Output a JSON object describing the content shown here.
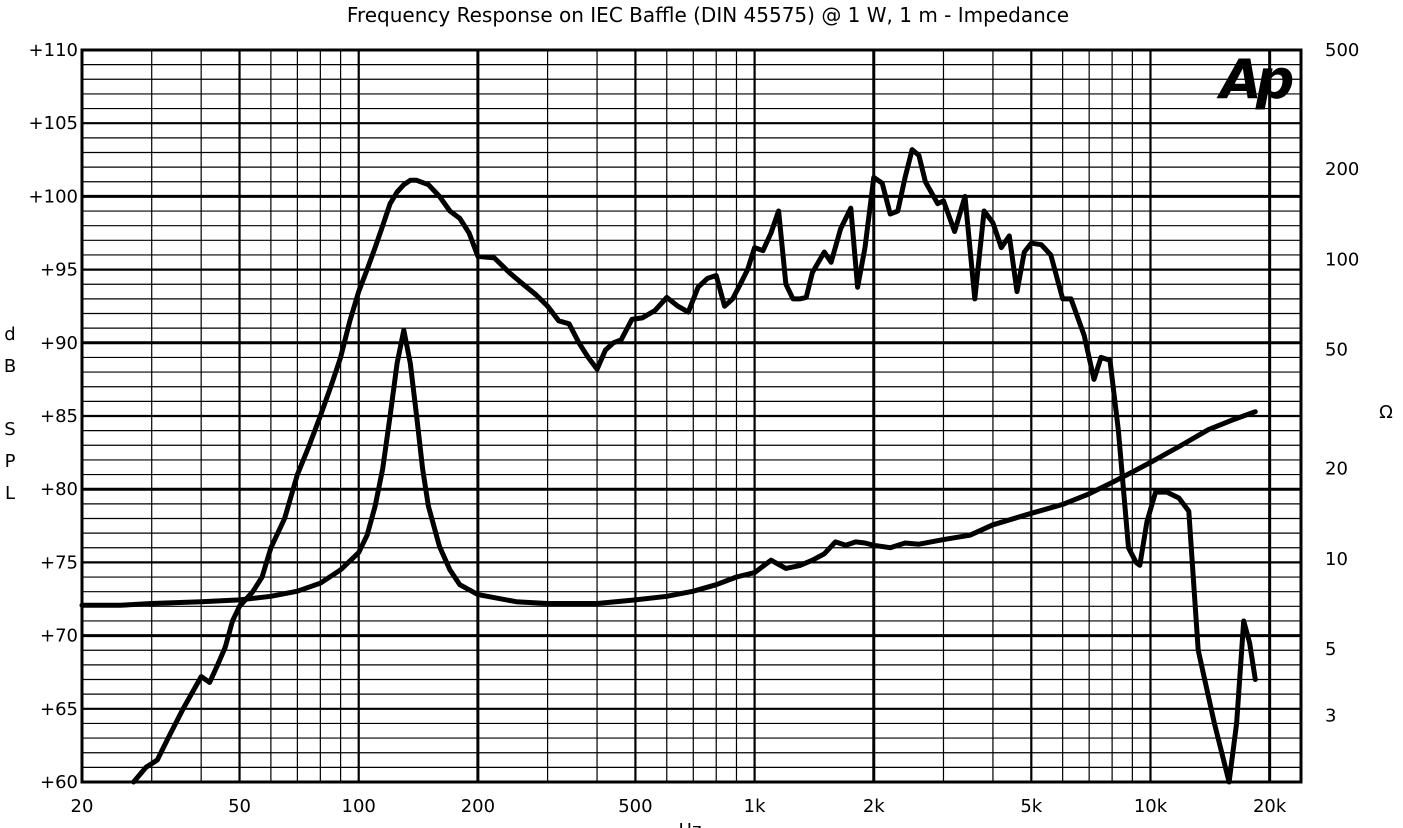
{
  "chart_data": {
    "type": "line",
    "title": "Frequency Response on IEC Baffle (DIN 45575) @ 1 W, 1 m - Impedance",
    "xlabel": "Hz",
    "ylabel_left_letters": [
      "d",
      "B",
      "S",
      "P",
      "L"
    ],
    "ylabel_right": "Ω",
    "logo": "Ap",
    "x_scale": "log",
    "xlim": [
      20,
      24000
    ],
    "ylim_left": [
      60,
      110
    ],
    "ylim_right_log": [
      1.8,
      500
    ],
    "x_tick_labels": [
      {
        "v": 20,
        "label": "20"
      },
      {
        "v": 50,
        "label": "50"
      },
      {
        "v": 100,
        "label": "100"
      },
      {
        "v": 200,
        "label": "200"
      },
      {
        "v": 500,
        "label": "500"
      },
      {
        "v": 1000,
        "label": "1k"
      },
      {
        "v": 2000,
        "label": "2k"
      },
      {
        "v": 5000,
        "label": "5k"
      },
      {
        "v": 10000,
        "label": "10k"
      },
      {
        "v": 20000,
        "label": "20k"
      }
    ],
    "y_left_tick_labels": [
      {
        "v": 110,
        "label": "+110"
      },
      {
        "v": 105,
        "label": "+105"
      },
      {
        "v": 100,
        "label": "+100"
      },
      {
        "v": 95,
        "label": "+95"
      },
      {
        "v": 90,
        "label": "+90"
      },
      {
        "v": 85,
        "label": "+85"
      },
      {
        "v": 80,
        "label": "+80"
      },
      {
        "v": 75,
        "label": "+75"
      },
      {
        "v": 70,
        "label": "+70"
      },
      {
        "v": 65,
        "label": "+65"
      },
      {
        "v": 60,
        "label": "+60"
      }
    ],
    "y_right_tick_labels": [
      {
        "v": 500,
        "label": "500"
      },
      {
        "v": 200,
        "label": "200"
      },
      {
        "v": 100,
        "label": "100"
      },
      {
        "v": 50,
        "label": "50"
      },
      {
        "v": 20,
        "label": "20"
      },
      {
        "v": 10,
        "label": "10"
      },
      {
        "v": 5,
        "label": "5"
      },
      {
        "v": 3,
        "label": "3"
      }
    ],
    "grid": true,
    "series": [
      {
        "axis": "left",
        "points": [
          [
            27,
            60
          ],
          [
            29,
            61
          ],
          [
            31,
            61.5
          ],
          [
            33,
            63
          ],
          [
            36,
            65
          ],
          [
            40,
            67.2
          ],
          [
            42,
            66.8
          ],
          [
            44,
            68
          ],
          [
            46,
            69.2
          ],
          [
            48,
            71
          ],
          [
            50,
            72
          ],
          [
            54,
            73
          ],
          [
            57,
            74
          ],
          [
            60,
            76
          ],
          [
            65,
            78
          ],
          [
            70,
            81
          ],
          [
            75,
            83
          ],
          [
            80,
            85
          ],
          [
            85,
            87
          ],
          [
            90,
            89
          ],
          [
            95,
            91.5
          ],
          [
            100,
            93.5
          ],
          [
            105,
            95
          ],
          [
            110,
            96.5
          ],
          [
            115,
            98
          ],
          [
            120,
            99.5
          ],
          [
            125,
            100.3
          ],
          [
            130,
            100.8
          ],
          [
            135,
            101.1
          ],
          [
            140,
            101.1
          ],
          [
            150,
            100.8
          ],
          [
            160,
            100
          ],
          [
            170,
            99
          ],
          [
            180,
            98.5
          ],
          [
            190,
            97.5
          ],
          [
            200,
            95.9
          ],
          [
            220,
            95.8
          ],
          [
            240,
            94.8
          ],
          [
            260,
            94
          ],
          [
            280,
            93.3
          ],
          [
            300,
            92.5
          ],
          [
            320,
            91.5
          ],
          [
            340,
            91.3
          ],
          [
            360,
            90
          ],
          [
            380,
            89
          ],
          [
            400,
            88.2
          ],
          [
            420,
            89.5
          ],
          [
            440,
            90
          ],
          [
            460,
            90.2
          ],
          [
            490,
            91.6
          ],
          [
            520,
            91.7
          ],
          [
            560,
            92.2
          ],
          [
            600,
            93.1
          ],
          [
            640,
            92.5
          ],
          [
            680,
            92.1
          ],
          [
            720,
            93.8
          ],
          [
            760,
            94.4
          ],
          [
            800,
            94.6
          ],
          [
            840,
            92.5
          ],
          [
            880,
            93
          ],
          [
            920,
            94
          ],
          [
            960,
            95
          ],
          [
            1000,
            96.5
          ],
          [
            1050,
            96.3
          ],
          [
            1100,
            97.5
          ],
          [
            1150,
            99
          ],
          [
            1200,
            94
          ],
          [
            1250,
            93
          ],
          [
            1300,
            93
          ],
          [
            1350,
            93.1
          ],
          [
            1400,
            94.8
          ],
          [
            1500,
            96.2
          ],
          [
            1560,
            95.5
          ],
          [
            1650,
            97.8
          ],
          [
            1750,
            99.2
          ],
          [
            1820,
            93.8
          ],
          [
            1900,
            96.5
          ],
          [
            2000,
            101.3
          ],
          [
            2100,
            100.9
          ],
          [
            2200,
            98.8
          ],
          [
            2300,
            99
          ],
          [
            2400,
            101.3
          ],
          [
            2500,
            103.2
          ],
          [
            2600,
            102.8
          ],
          [
            2700,
            101
          ],
          [
            2900,
            99.5
          ],
          [
            3000,
            99.7
          ],
          [
            3200,
            97.6
          ],
          [
            3400,
            100
          ],
          [
            3600,
            93
          ],
          [
            3800,
            99
          ],
          [
            4000,
            98.2
          ],
          [
            4200,
            96.5
          ],
          [
            4400,
            97.3
          ],
          [
            4600,
            93.5
          ],
          [
            4800,
            96.2
          ],
          [
            5000,
            96.8
          ],
          [
            5300,
            96.7
          ],
          [
            5600,
            96
          ],
          [
            6000,
            93
          ],
          [
            6300,
            93
          ],
          [
            6800,
            90.5
          ],
          [
            7200,
            87.5
          ],
          [
            7500,
            89
          ],
          [
            7900,
            88.8
          ],
          [
            8300,
            84
          ],
          [
            8800,
            76
          ],
          [
            9200,
            75
          ],
          [
            9400,
            74.8
          ],
          [
            9800,
            77.8
          ],
          [
            10300,
            79.8
          ],
          [
            11000,
            79.8
          ],
          [
            11800,
            79.4
          ],
          [
            12500,
            78.5
          ],
          [
            13200,
            69
          ],
          [
            14500,
            64
          ],
          [
            15800,
            60
          ],
          [
            16500,
            64
          ],
          [
            17200,
            71
          ],
          [
            17800,
            69.5
          ],
          [
            18400,
            67
          ]
        ]
      },
      {
        "axis": "right",
        "points": [
          [
            20,
            7.0
          ],
          [
            25,
            7.0
          ],
          [
            30,
            7.1
          ],
          [
            40,
            7.2
          ],
          [
            50,
            7.3
          ],
          [
            60,
            7.5
          ],
          [
            70,
            7.8
          ],
          [
            80,
            8.3
          ],
          [
            90,
            9.2
          ],
          [
            100,
            10.5
          ],
          [
            105,
            12
          ],
          [
            110,
            15
          ],
          [
            115,
            20
          ],
          [
            120,
            30
          ],
          [
            125,
            45
          ],
          [
            130,
            58
          ],
          [
            135,
            45
          ],
          [
            140,
            30
          ],
          [
            145,
            20
          ],
          [
            150,
            15
          ],
          [
            160,
            11
          ],
          [
            170,
            9.2
          ],
          [
            180,
            8.2
          ],
          [
            200,
            7.6
          ],
          [
            250,
            7.2
          ],
          [
            300,
            7.1
          ],
          [
            400,
            7.1
          ],
          [
            500,
            7.3
          ],
          [
            600,
            7.5
          ],
          [
            700,
            7.8
          ],
          [
            800,
            8.2
          ],
          [
            900,
            8.7
          ],
          [
            1000,
            9.0
          ],
          [
            1100,
            9.9
          ],
          [
            1200,
            9.3
          ],
          [
            1300,
            9.5
          ],
          [
            1400,
            9.9
          ],
          [
            1500,
            10.4
          ],
          [
            1600,
            11.4
          ],
          [
            1700,
            11.1
          ],
          [
            1800,
            11.4
          ],
          [
            1900,
            11.3
          ],
          [
            2000,
            11.1
          ],
          [
            2200,
            10.9
          ],
          [
            2400,
            11.3
          ],
          [
            2600,
            11.2
          ],
          [
            3000,
            11.6
          ],
          [
            3500,
            12
          ],
          [
            4000,
            13
          ],
          [
            5000,
            14.2
          ],
          [
            6000,
            15.2
          ],
          [
            7000,
            16.5
          ],
          [
            8000,
            18
          ],
          [
            9000,
            19.5
          ],
          [
            10000,
            21
          ],
          [
            12000,
            24
          ],
          [
            14000,
            27
          ],
          [
            16000,
            29
          ],
          [
            18400,
            31
          ]
        ]
      }
    ]
  }
}
